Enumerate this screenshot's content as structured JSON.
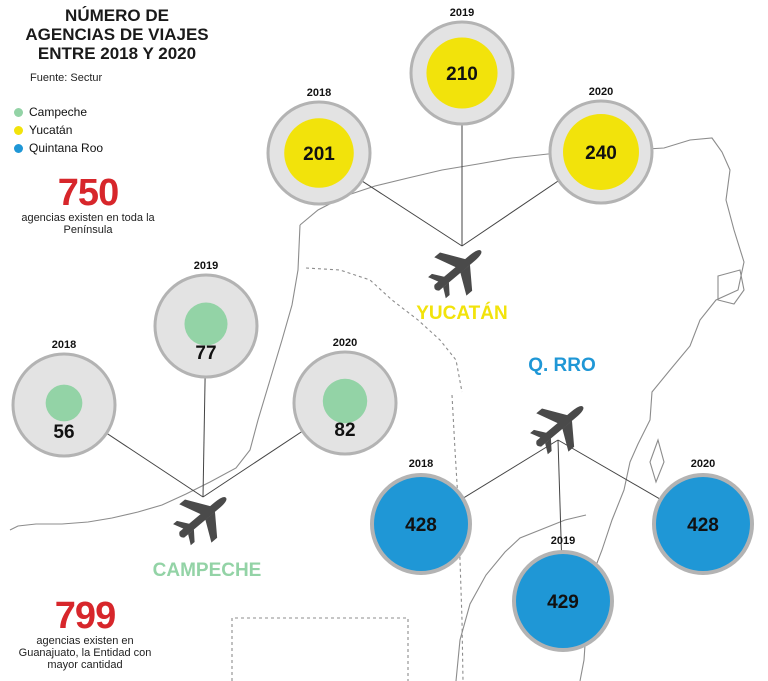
{
  "title": {
    "lines": [
      "NÚMERO DE",
      "AGENCIAS DE VIAJES",
      "ENTRE 2018 Y 2020"
    ]
  },
  "source": "Fuente: Sectur",
  "legend": [
    {
      "label": "Campeche",
      "color": "#93d3a6"
    },
    {
      "label": "Yucatán",
      "color": "#f2e30b"
    },
    {
      "label": "Quintana Roo",
      "color": "#1f97d6"
    }
  ],
  "stats": [
    {
      "number": "750",
      "text": "agencias existen en toda la Península"
    },
    {
      "number": "799",
      "text": "agencias existen en Guanajuato, la Entidad con mayor cantidad"
    }
  ],
  "colors": {
    "bubble_grey": "#e3e3e3",
    "bubble_stroke": "#b3b3b3",
    "plane": "#4a4a4a",
    "map_line": "#8c8c8c"
  },
  "chart_data": {
    "type": "bubble",
    "series": [
      {
        "name": "CAMPECHE",
        "color": "#93d3a6",
        "years": [
          "2018",
          "2019",
          "2020"
        ],
        "values": [
          56,
          77,
          82
        ]
      },
      {
        "name": "YUCATÁN",
        "color": "#f2e30b",
        "years": [
          "2018",
          "2019",
          "2020"
        ],
        "values": [
          201,
          210,
          240
        ]
      },
      {
        "name": "Q. RRO",
        "color": "#1f97d6",
        "years": [
          "2018",
          "2019",
          "2020"
        ],
        "values": [
          428,
          429,
          428
        ]
      }
    ]
  }
}
